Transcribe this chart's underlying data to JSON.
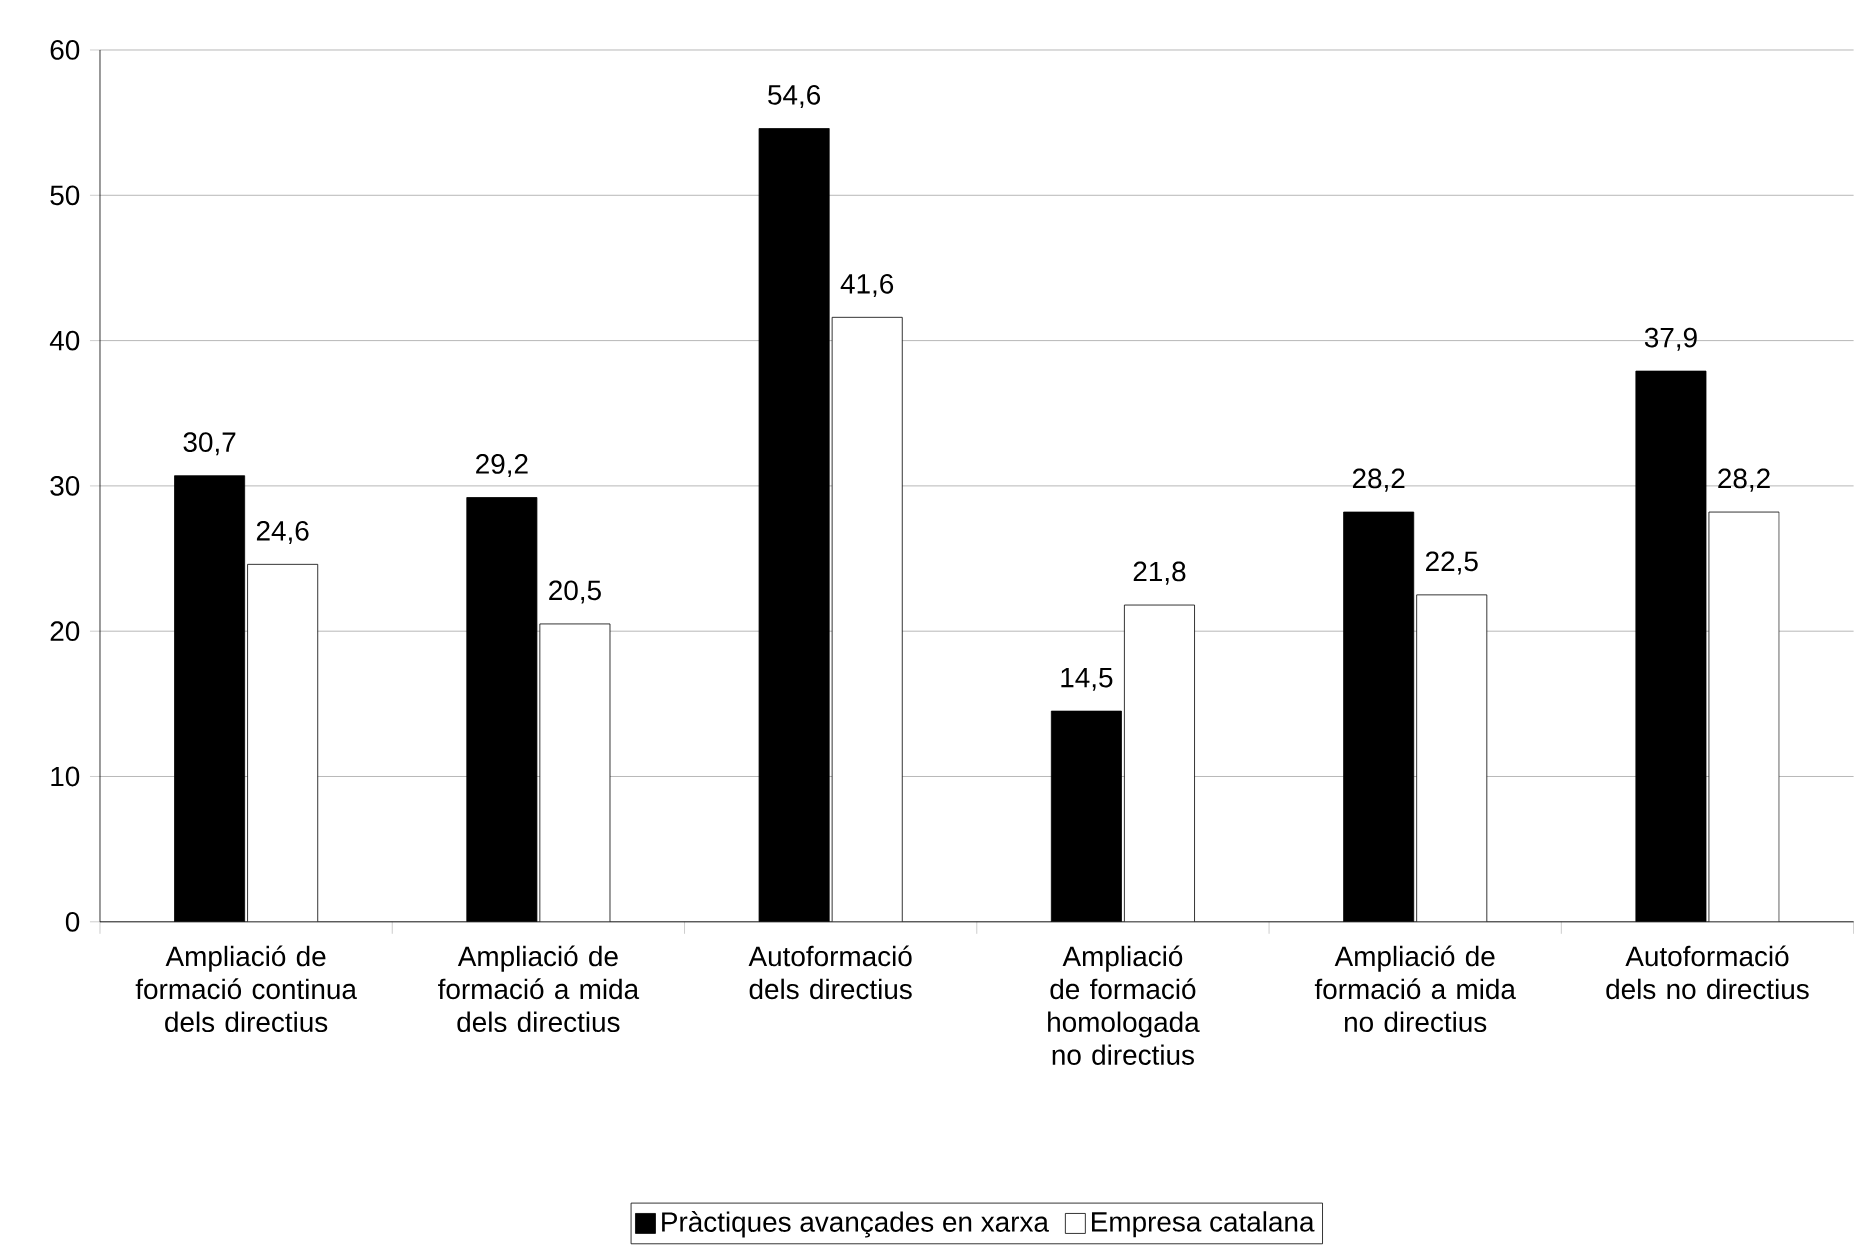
{
  "chart_data": {
    "type": "bar",
    "categories": [
      "Ampliació de formació continua dels directius",
      "Ampliació de formació a mida dels directius",
      "Autoformació dels directius",
      "Ampliació de formació homologada no directius",
      "Ampliació de formació a mida no directius",
      "Autoformació dels no directius"
    ],
    "series": [
      {
        "name": "Pràctiques avançades en xarxa",
        "color": "#000000",
        "values": [
          30.7,
          29.2,
          54.6,
          14.5,
          28.2,
          37.9
        ],
        "value_labels": [
          "30,7",
          "29,2",
          "54,6",
          "14,5",
          "28,2",
          "37,9"
        ]
      },
      {
        "name": "Empresa catalana",
        "color": "#ffffff",
        "values": [
          24.6,
          20.5,
          41.6,
          21.8,
          22.5,
          28.2
        ],
        "value_labels": [
          "24,6",
          "20,5",
          "41,6",
          "21,8",
          "22,5",
          "28,2"
        ]
      }
    ],
    "ylim": [
      0,
      60
    ],
    "yticks": [
      0,
      10,
      20,
      30,
      40,
      50,
      60
    ],
    "grid": "y",
    "legend": "bottom"
  }
}
